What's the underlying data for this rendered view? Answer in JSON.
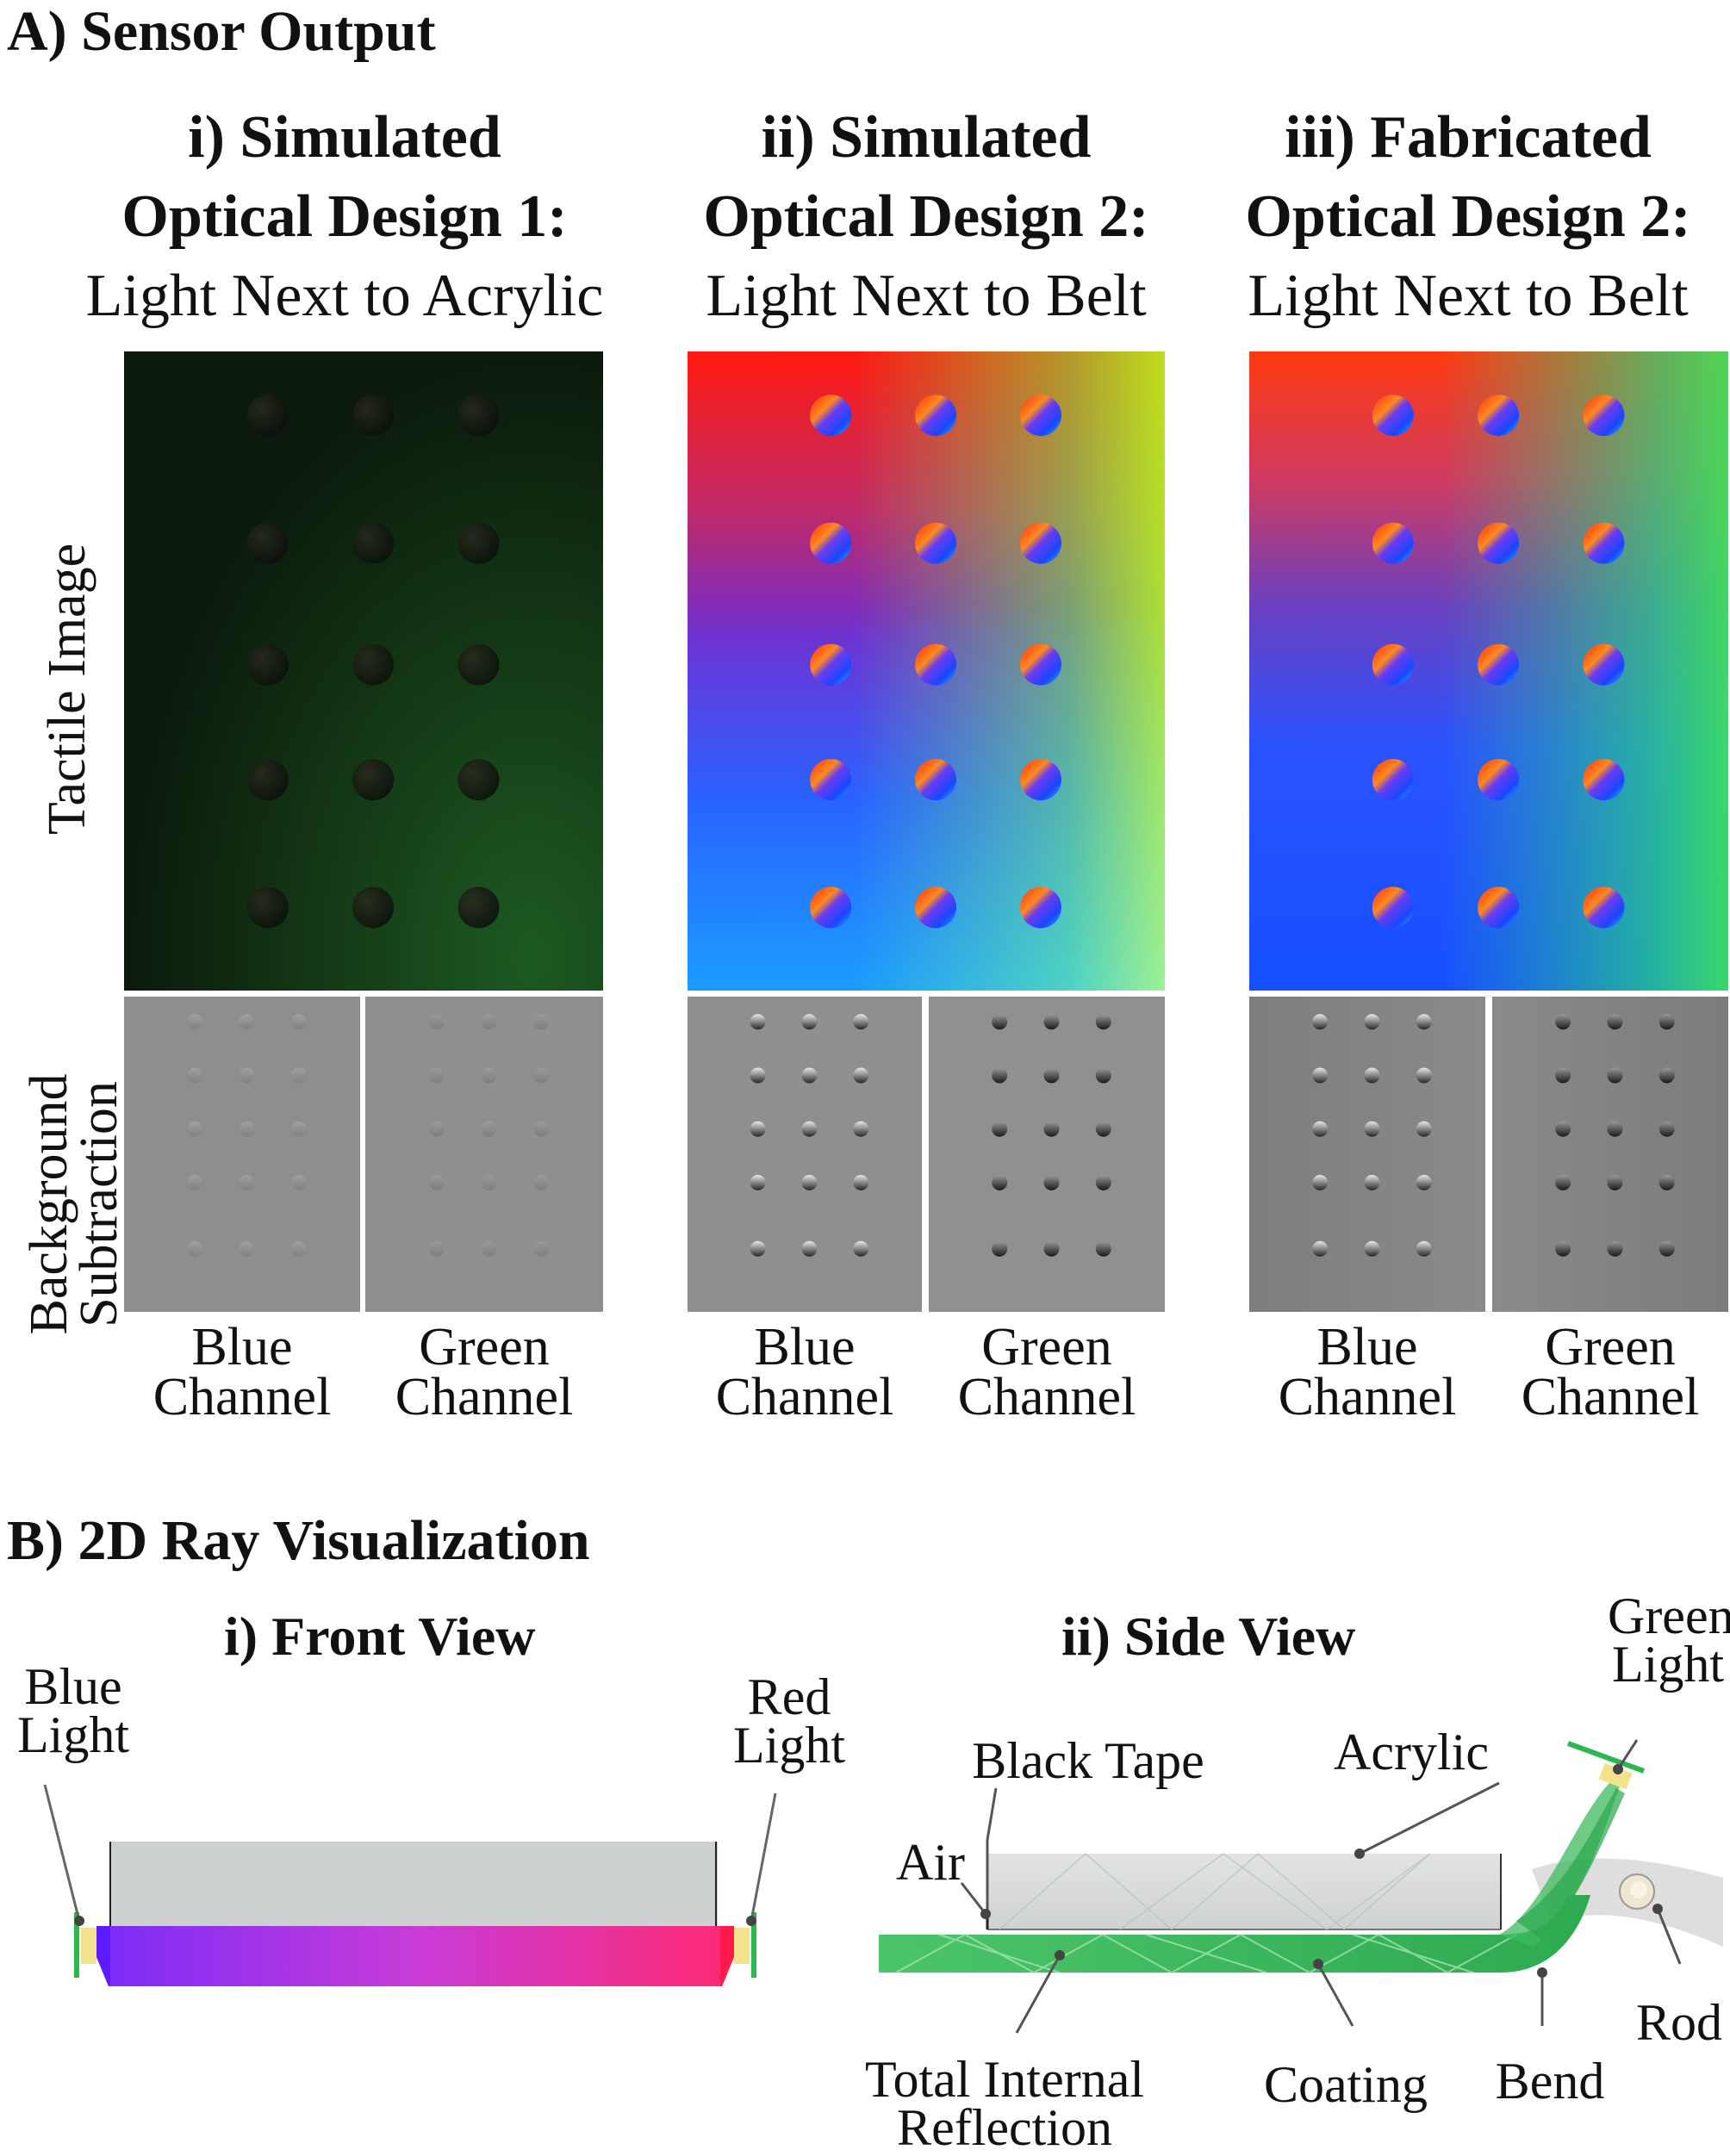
{
  "sectionA": {
    "title": "A) Sensor Output",
    "row_labels": {
      "tactile": "Tactile Image",
      "background_line1": "Background",
      "background_line2": "Subtraction"
    },
    "columns": [
      {
        "line1": "i) Simulated",
        "line2": "Optical Design 1:",
        "line3": "Light Next to Acrylic",
        "channel1a": "Blue",
        "channel1b": "Channel",
        "channel2a": "Green",
        "channel2b": "Channel"
      },
      {
        "line1": "ii) Simulated",
        "line2": "Optical Design 2:",
        "line3": "Light Next to Belt",
        "channel1a": "Blue",
        "channel1b": "Channel",
        "channel2a": "Green",
        "channel2b": "Channel"
      },
      {
        "line1": "iii) Fabricated",
        "line2": "Optical Design 2:",
        "line3": "Light Next to Belt",
        "channel1a": "Blue",
        "channel1b": "Channel",
        "channel2a": "Green",
        "channel2b": "Channel"
      }
    ]
  },
  "sectionB": {
    "title": "B) 2D Ray Visualization",
    "front_view": {
      "title": "i) Front View",
      "blue_light_1": "Blue",
      "blue_light_2": "Light",
      "red_light_1": "Red",
      "red_light_2": "Light"
    },
    "side_view": {
      "title": "ii) Side View",
      "green_light_1": "Green",
      "green_light_2": "Light",
      "black_tape": "Black Tape",
      "acrylic": "Acrylic",
      "air": "Air",
      "rod": "Rod",
      "tir_1": "Total Internal",
      "tir_2": "Reflection",
      "coating": "Coating",
      "bend": "Bend"
    }
  },
  "colors": {
    "blue_light": "#6a2cff",
    "red_light": "#ff2a66",
    "green_light": "#2bb84c",
    "acrylic": "#c9cdcc",
    "coating": "#3cb35c",
    "led": "#f2e28c",
    "gray_panel": "#8f8f8f"
  }
}
